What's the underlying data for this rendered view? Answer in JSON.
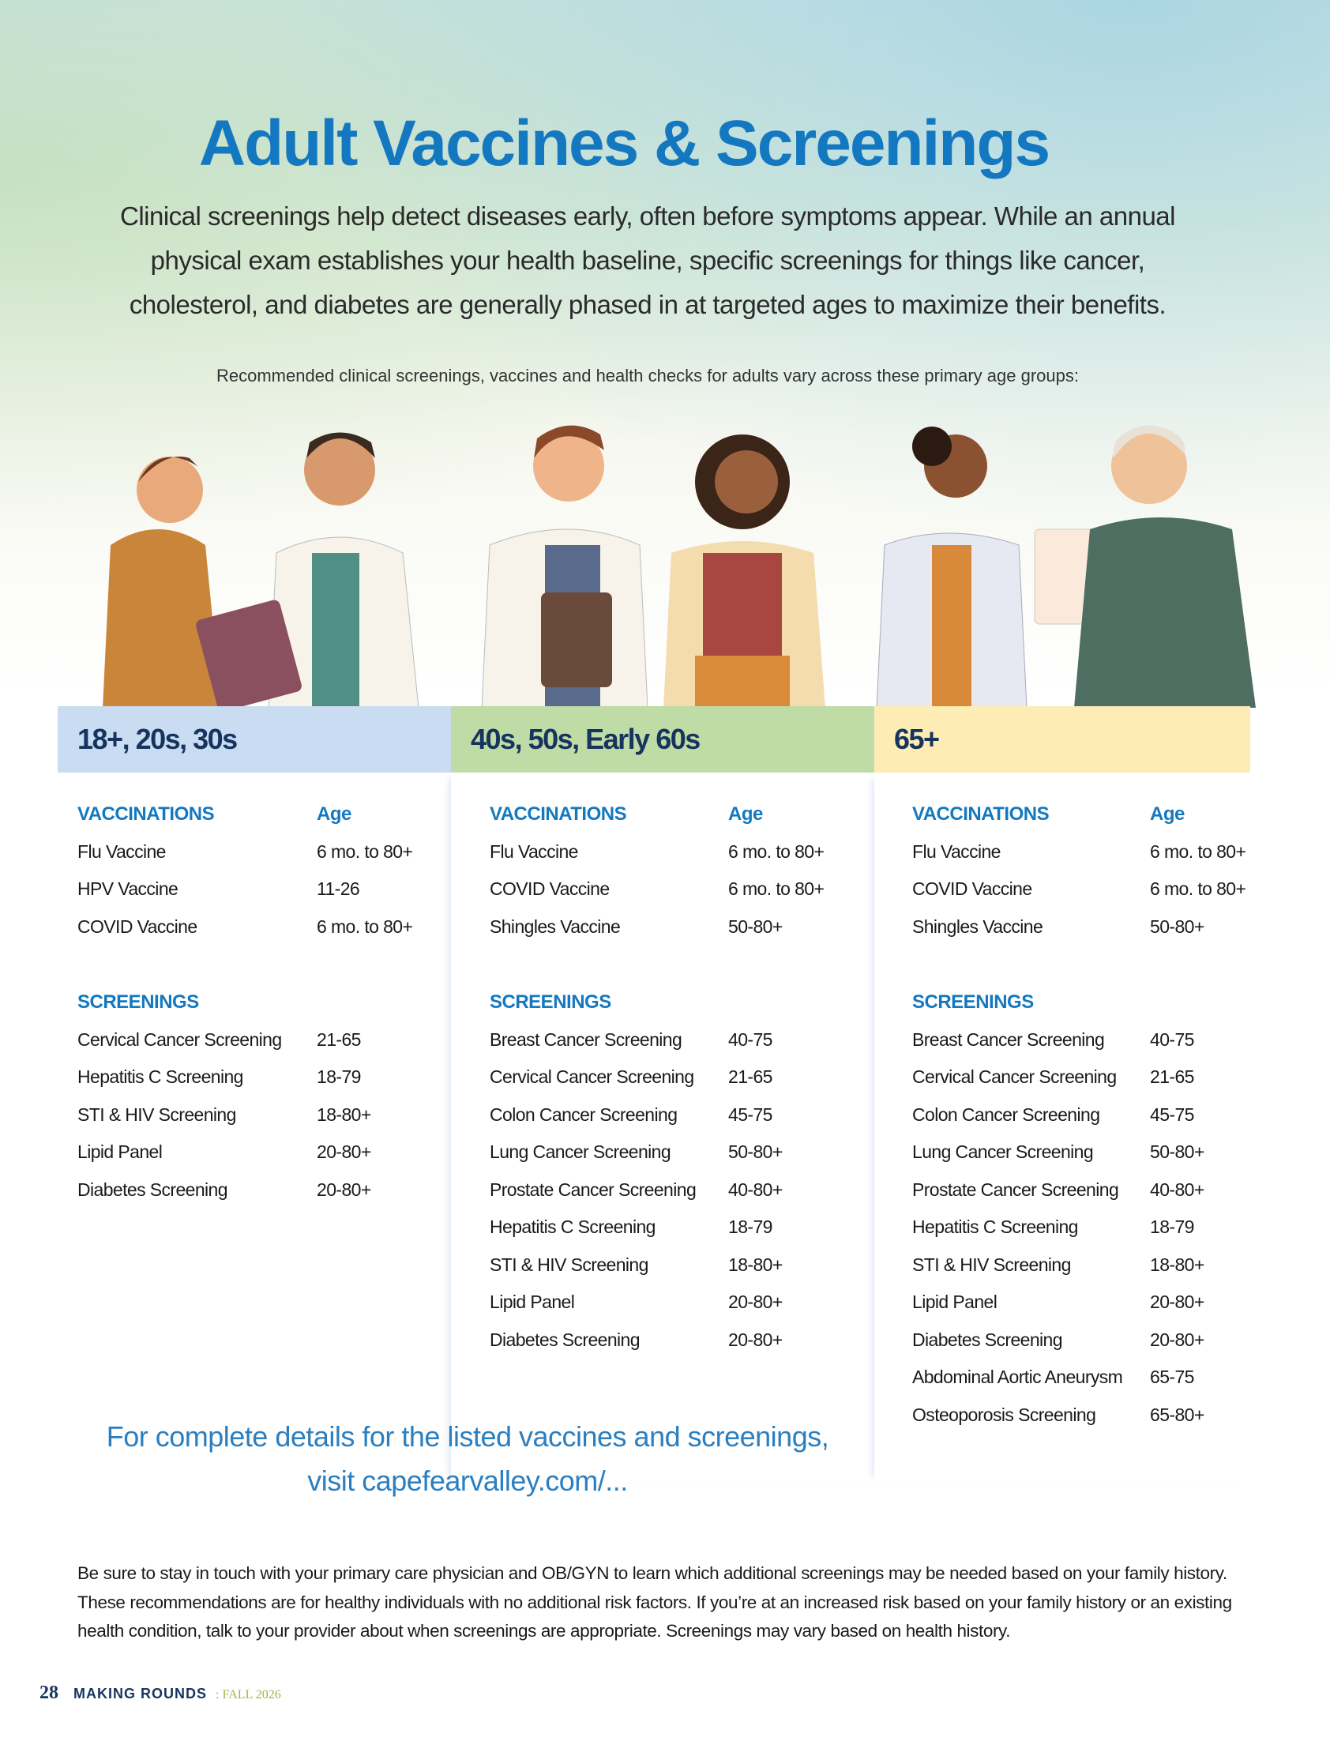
{
  "header": {
    "title": "Adult Vaccines & Screenings",
    "intro": [
      "Clinical screenings help detect diseases early, often before symptoms appear. While an annual",
      "physical exam establishes your health baseline, specific screenings for things like cancer,",
      "cholesterol, and diabetes are generally phased in at targeted ages to maximize their benefits."
    ],
    "subtitle": "Recommended clinical screenings, vaccines and health checks for adults vary across these primary age groups:"
  },
  "columns": [
    {
      "heading": "18+, 20s, 30s",
      "vaccinations": {
        "label": "VACCINATIONS",
        "age_label": "Age",
        "rows": [
          [
            "Flu Vaccine",
            "6 mo. to 80+"
          ],
          [
            "HPV Vaccine",
            "11-26"
          ],
          [
            "COVID Vaccine",
            "6 mo. to 80+"
          ]
        ]
      },
      "screenings": {
        "label": "SCREENINGS",
        "rows": [
          [
            "Cervical Cancer Screening",
            "21-65"
          ],
          [
            "Hepatitis C Screening",
            "18-79"
          ],
          [
            "STI & HIV Screening",
            "18-80+"
          ],
          [
            "Lipid Panel",
            "20-80+"
          ],
          [
            "Diabetes Screening",
            "20-80+"
          ]
        ]
      }
    },
    {
      "heading": "40s, 50s, Early 60s",
      "vaccinations": {
        "label": "VACCINATIONS",
        "age_label": "Age",
        "rows": [
          [
            "Flu Vaccine",
            "6 mo. to 80+"
          ],
          [
            "COVID Vaccine",
            "6 mo. to 80+"
          ],
          [
            "Shingles Vaccine",
            "50-80+"
          ]
        ]
      },
      "screenings": {
        "label": "SCREENINGS",
        "rows": [
          [
            "Breast Cancer Screening",
            "40-75"
          ],
          [
            "Cervical Cancer Screening",
            "21-65"
          ],
          [
            "Colon Cancer Screening",
            "45-75"
          ],
          [
            "Lung Cancer Screening",
            "50-80+"
          ],
          [
            "Prostate Cancer Screening",
            "40-80+"
          ],
          [
            "Hepatitis C Screening",
            "18-79"
          ],
          [
            "STI & HIV Screening",
            "18-80+"
          ],
          [
            "Lipid Panel",
            "20-80+"
          ],
          [
            "Diabetes Screening",
            "20-80+"
          ]
        ]
      }
    },
    {
      "heading": "65+",
      "vaccinations": {
        "label": "VACCINATIONS",
        "age_label": "Age",
        "rows": [
          [
            "Flu Vaccine",
            "6 mo. to 80+"
          ],
          [
            "COVID Vaccine",
            "6 mo. to 80+"
          ],
          [
            "Shingles Vaccine",
            "50-80+"
          ]
        ]
      },
      "screenings": {
        "label": "SCREENINGS",
        "rows": [
          [
            "Breast Cancer Screening",
            "40-75"
          ],
          [
            "Cervical Cancer Screening",
            "21-65"
          ],
          [
            "Colon Cancer Screening",
            "45-75"
          ],
          [
            "Lung Cancer Screening",
            "50-80+"
          ],
          [
            "Prostate Cancer Screening",
            "40-80+"
          ],
          [
            "Hepatitis C Screening",
            "18-79"
          ],
          [
            "STI & HIV Screening",
            "18-80+"
          ],
          [
            "Lipid Panel",
            "20-80+"
          ],
          [
            "Diabetes Screening",
            "20-80+"
          ],
          [
            "Abdominal Aortic Aneurysm",
            "65-75"
          ],
          [
            "Osteoporosis Screening",
            "65-80+"
          ]
        ]
      }
    }
  ],
  "cta": [
    "For complete details for the listed vaccines and screenings,",
    "visit capefearvalley.com/..."
  ],
  "note": [
    "Be sure to stay in touch with your primary care physician and OB/GYN to learn which additional screenings may be needed based on your family history.",
    "These recommendations are for healthy individuals with no additional risk factors. If you’re at an increased risk based on your family history or an existing",
    "health condition, talk to your provider about when screenings are appropriate. Screenings may vary based on health history."
  ],
  "footer": {
    "page": "28",
    "magazine": "MAKING ROUNDS",
    "issue": ": FALL 2026"
  }
}
